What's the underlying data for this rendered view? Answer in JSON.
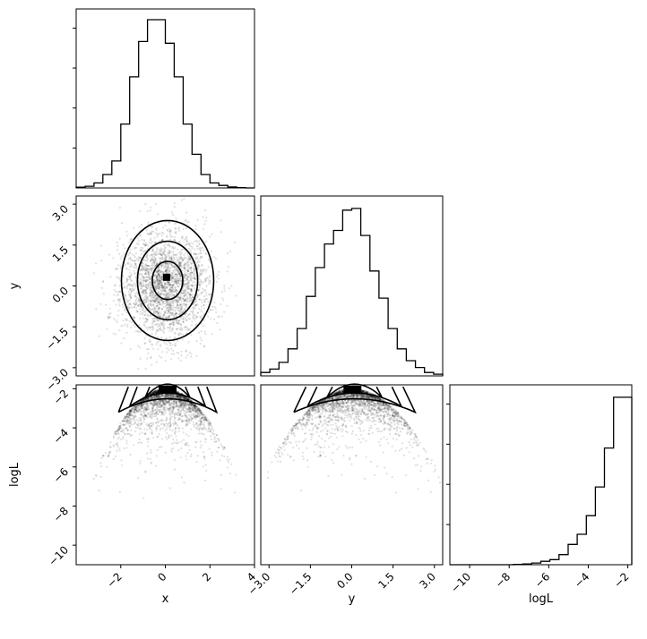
{
  "chart_data": {
    "type": "corner",
    "parameters": [
      "x",
      "y",
      "logL"
    ],
    "axis_labels": {
      "x": "x",
      "y": "y",
      "logL": "logL"
    },
    "ranges": {
      "x": [
        -4.0,
        4.0
      ],
      "y": [
        -3.3,
        3.3
      ],
      "logL": [
        -11.0,
        -1.8
      ]
    },
    "ticks": {
      "x": {
        "values": [
          -2,
          0,
          2,
          4
        ],
        "labels": [
          "−2",
          "0",
          "2",
          "4"
        ]
      },
      "y": {
        "values": [
          -3.0,
          -1.5,
          0.0,
          1.5,
          3.0
        ],
        "labels": [
          "−3.0",
          "−1.5",
          "0.0",
          "1.5",
          "3.0"
        ]
      },
      "logL": {
        "values": [
          -10,
          -8,
          -6,
          -4,
          -2
        ],
        "labels": [
          "−10",
          "−8",
          "−6",
          "−4",
          "−2"
        ]
      }
    },
    "histograms": {
      "x": {
        "counts": [
          0.004,
          0.01,
          0.03,
          0.08,
          0.16,
          0.38,
          0.66,
          0.87,
          1.0,
          1.0,
          0.86,
          0.66,
          0.38,
          0.2,
          0.08,
          0.03,
          0.015,
          0.006,
          0.002,
          0.0
        ]
      },
      "y": {
        "counts": [
          0.02,
          0.04,
          0.08,
          0.16,
          0.28,
          0.47,
          0.64,
          0.78,
          0.86,
          0.98,
          0.99,
          0.83,
          0.62,
          0.46,
          0.28,
          0.16,
          0.09,
          0.05,
          0.02,
          0.01
        ]
      },
      "logL": {
        "counts": [
          0.0,
          0.0,
          0.0,
          0.0,
          0.0,
          0.0,
          0.0,
          0.002,
          0.005,
          0.01,
          0.02,
          0.03,
          0.06,
          0.12,
          0.18,
          0.29,
          0.46,
          0.69,
          0.99,
          0.99
        ]
      }
    },
    "grid": false
  }
}
